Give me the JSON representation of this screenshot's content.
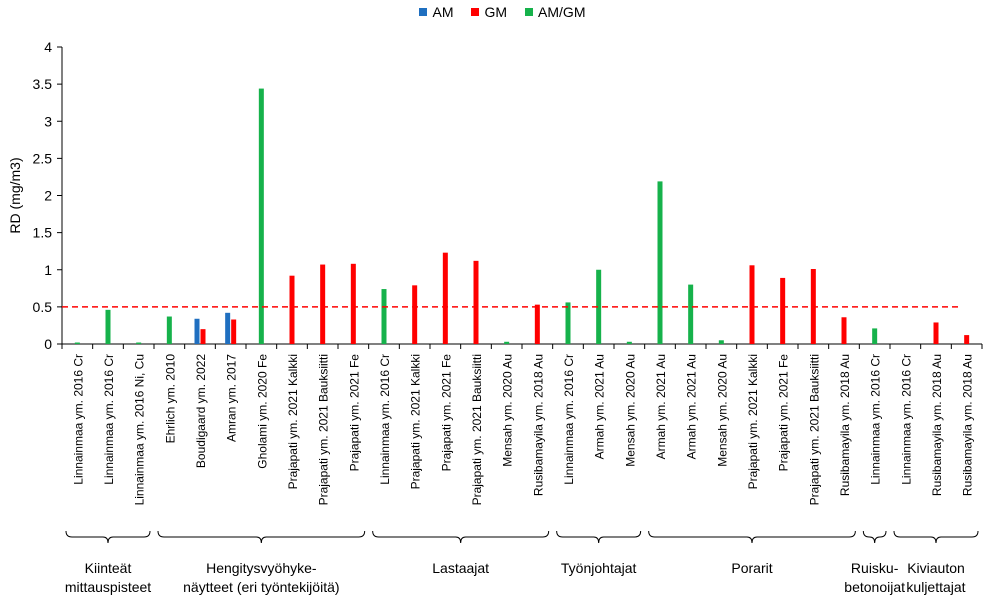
{
  "chart_data": {
    "type": "bar",
    "ylabel": "RD (mg/m3)",
    "ylim": [
      0,
      4
    ],
    "yticks": [
      "0",
      "0.5",
      "1",
      "1.5",
      "2",
      "2.5",
      "3",
      "3.5",
      "4"
    ],
    "reference_line": 0.5,
    "legend_position": "top-center",
    "series": [
      {
        "name": "AM",
        "color": "#1f6fc0"
      },
      {
        "name": "GM",
        "color": "#ff0000"
      },
      {
        "name": "AM/GM",
        "color": "#16b24b"
      }
    ],
    "categories": [
      {
        "label": "Linnainmaa ym. 2016 Cr",
        "am": null,
        "gm": null,
        "amgm": 0.02
      },
      {
        "label": "Linnainmaa ym. 2016 Cr",
        "am": null,
        "gm": null,
        "amgm": 0.46
      },
      {
        "label": "Linnainmaa ym. 2016 Ni, Cu",
        "am": null,
        "gm": null,
        "amgm": 0.02
      },
      {
        "label": "Ehrlich ym. 2010",
        "am": null,
        "gm": null,
        "amgm": 0.37
      },
      {
        "label": "Boudigaard ym. 2022",
        "am": 0.34,
        "gm": 0.2,
        "amgm": null
      },
      {
        "label": "Amran ym. 2017",
        "am": 0.42,
        "gm": 0.33,
        "amgm": null
      },
      {
        "label": "Gholami ym. 2020 Fe",
        "am": null,
        "gm": null,
        "amgm": 3.44
      },
      {
        "label": "Prajapati ym. 2021 Kalkki",
        "am": null,
        "gm": 0.92,
        "amgm": null
      },
      {
        "label": "Prajapati ym. 2021 Bauksiitti",
        "am": null,
        "gm": 1.07,
        "amgm": null
      },
      {
        "label": "Prajapati ym. 2021 Fe",
        "am": null,
        "gm": 1.08,
        "amgm": null
      },
      {
        "label": "Linnainmaa ym. 2016 Cr",
        "am": null,
        "gm": null,
        "amgm": 0.74
      },
      {
        "label": "Prajapati ym. 2021 Kalkki",
        "am": null,
        "gm": 0.79,
        "amgm": null
      },
      {
        "label": "Prajapati ym. 2021 Fe",
        "am": null,
        "gm": 1.23,
        "amgm": null
      },
      {
        "label": "Prajapati ym. 2021 Bauksiitti",
        "am": null,
        "gm": 1.12,
        "amgm": null
      },
      {
        "label": "Mensah ym. 2020 Au",
        "am": null,
        "gm": null,
        "amgm": 0.03
      },
      {
        "label": "Rusibamayila ym. 2018 Au",
        "am": null,
        "gm": 0.53,
        "amgm": null
      },
      {
        "label": "Linnainmaa ym. 2016 Cr",
        "am": null,
        "gm": null,
        "amgm": 0.56
      },
      {
        "label": "Armah ym. 2021 Au",
        "am": null,
        "gm": null,
        "amgm": 1.0
      },
      {
        "label": "Mensah ym. 2020 Au",
        "am": null,
        "gm": null,
        "amgm": 0.03
      },
      {
        "label": "Armah ym. 2021 Au",
        "am": null,
        "gm": null,
        "amgm": 2.19
      },
      {
        "label": "Armah ym. 2021 Au",
        "am": null,
        "gm": null,
        "amgm": 0.8
      },
      {
        "label": "Mensah ym. 2020 Au",
        "am": null,
        "gm": null,
        "amgm": 0.05
      },
      {
        "label": "Prajapati ym. 2021 Kalkki",
        "am": null,
        "gm": 1.06,
        "amgm": null
      },
      {
        "label": "Prajapati ym. 2021 Fe",
        "am": null,
        "gm": 0.89,
        "amgm": null
      },
      {
        "label": "Prajapati ym. 2021 Bauksiitti",
        "am": null,
        "gm": 1.01,
        "amgm": null
      },
      {
        "label": "Rusibamayila ym. 2018 Au",
        "am": null,
        "gm": 0.36,
        "amgm": null
      },
      {
        "label": "Linnainmaa ym. 2016 Cr",
        "am": null,
        "gm": null,
        "amgm": 0.21
      },
      {
        "label": "Linnainmaa ym. 2016 Cr",
        "am": null,
        "gm": null,
        "amgm": null
      },
      {
        "label": "Rusibamayila ym. 2018 Au",
        "am": null,
        "gm": 0.29,
        "amgm": null
      },
      {
        "label": "Rusibamayila ym. 2018 Au",
        "am": null,
        "gm": 0.12,
        "amgm": null
      }
    ],
    "groups": [
      {
        "lines": [
          "Kiinteät",
          "mittauspisteet"
        ],
        "first": 0,
        "last": 2
      },
      {
        "lines": [
          "Hengitysvyöhyke-",
          "näytteet (eri työntekijöitä)"
        ],
        "first": 3,
        "last": 9
      },
      {
        "lines": [
          "Lastaajat"
        ],
        "first": 10,
        "last": 15
      },
      {
        "lines": [
          "Työnjohtajat"
        ],
        "first": 16,
        "last": 18
      },
      {
        "lines": [
          "Porarit"
        ],
        "first": 19,
        "last": 25
      },
      {
        "lines": [
          "Ruisku-",
          "betonoijat"
        ],
        "first": 26,
        "last": 26
      },
      {
        "lines": [
          "Kiviauton",
          "kuljettajat"
        ],
        "first": 27,
        "last": 29
      }
    ]
  }
}
